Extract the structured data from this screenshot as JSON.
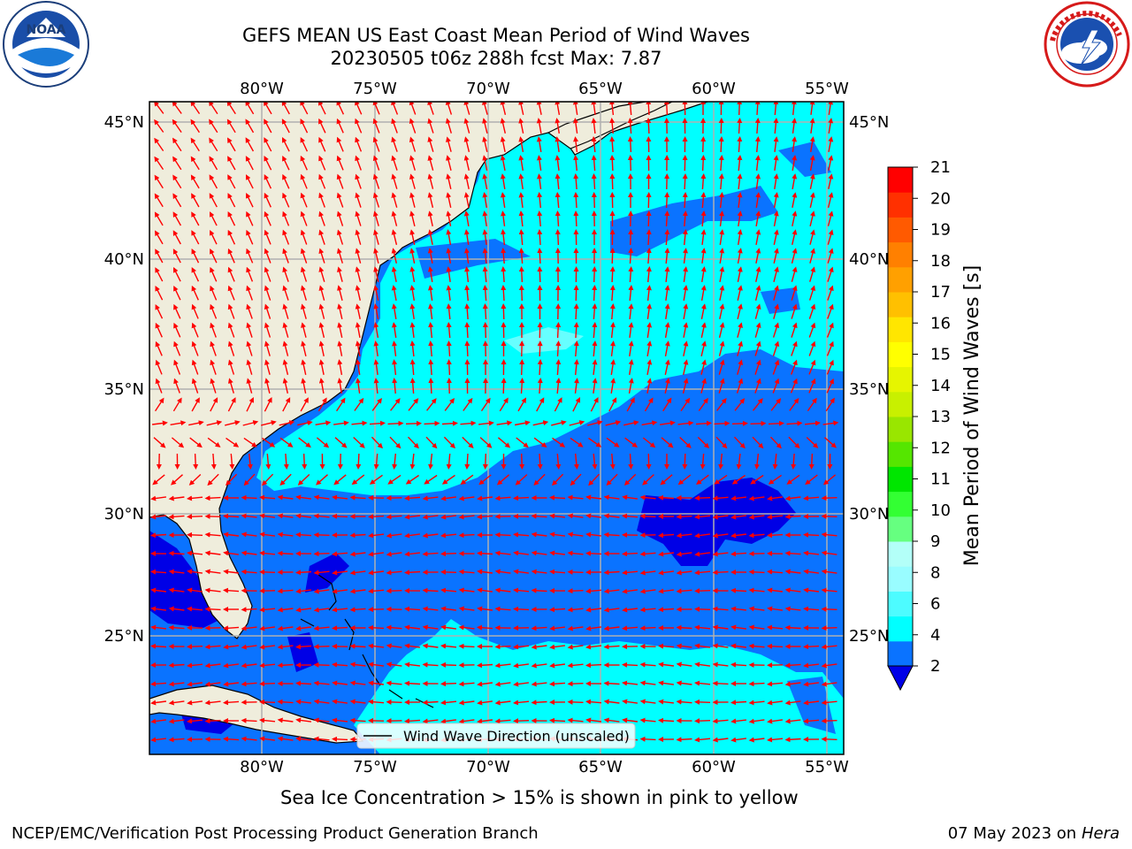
{
  "header": {
    "title_line1": "GEFS MEAN US East Coast Mean Period of Wind Waves",
    "title_line2": "20230505 t06z 288h fcst   Max: 7.87"
  },
  "logos": {
    "left": "noaa-logo",
    "right": "national-weather-service-logo",
    "left_text": "NOAA",
    "left_ring_text": "NATIONAL OCEANIC AND ATMOSPHERIC ADMINISTRATION · U.S. DEPARTMENT OF COMMERCE",
    "right_ring_text": "NATIONAL WEATHER SERVICE"
  },
  "map": {
    "lon_labels": [
      "80°W",
      "75°W",
      "70°W",
      "65°W",
      "60°W",
      "55°W"
    ],
    "lat_labels": [
      "45°N",
      "40°N",
      "35°N",
      "30°N",
      "25°N"
    ],
    "legend_label": "Wind Wave Direction (unscaled)",
    "colors": {
      "land": "#efeddc",
      "coast": "#000000",
      "grid": "#b0b0b0",
      "arrow": "#ff0000",
      "band_2_4": "#0a73ff",
      "band_4_6": "#00ffff",
      "band_6_8": "#66ffff",
      "below_2": "#0000e6"
    }
  },
  "colorbar": {
    "label": "Mean Period of Wind Waves [s]",
    "ticks": [
      "21",
      "20",
      "19",
      "18",
      "17",
      "16",
      "15",
      "14",
      "13",
      "12",
      "11",
      "10",
      "9",
      "8",
      "6",
      "4",
      "2"
    ],
    "colors_bottom_to_top": [
      "#0a73ff",
      "#00ffff",
      "#4dfcff",
      "#99fdff",
      "#b3fff8",
      "#66ff80",
      "#33ff33",
      "#00e600",
      "#55e600",
      "#99e600",
      "#c8f000",
      "#e6f500",
      "#ffff00",
      "#ffe600",
      "#ffc000",
      "#ffa000",
      "#ff8000",
      "#ff5a00",
      "#ff3000",
      "#ff0000"
    ],
    "extend_color": "#0000e6"
  },
  "footer": {
    "ice_note": "Sea Ice Concentration > 15% is shown in pink to yellow",
    "credit": "NCEP/EMC/Verification Post Processing Product Generation Branch",
    "date": "07 May 2023 on",
    "machine": "Hera"
  }
}
